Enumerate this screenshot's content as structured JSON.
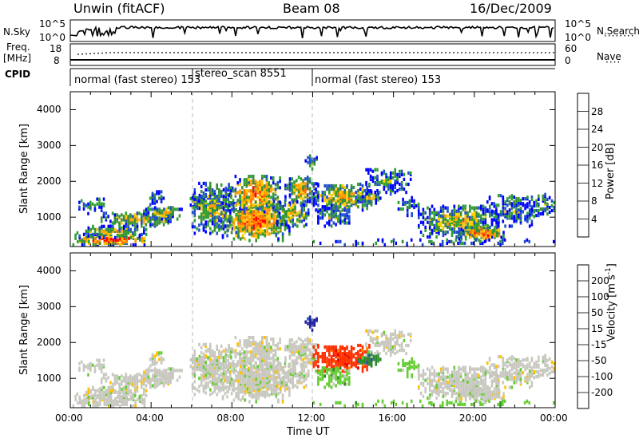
{
  "header": {
    "station": "Unwin (fitACF)",
    "beam": "Beam 08",
    "date": "16/Dec/2009"
  },
  "panels": {
    "nsky": {
      "label": "N.Sky",
      "ticks": [
        "10^5",
        "10^0"
      ],
      "right_label": "N.Search",
      "right_ticks": [
        "10^5",
        "10^0"
      ]
    },
    "freq": {
      "label_line1": "Freq.",
      "label_line2": "[MHz]",
      "ticks": [
        "18",
        "8"
      ],
      "right_label": "Nave",
      "right_ticks": [
        "60",
        "0"
      ]
    },
    "cpid": {
      "label": "CPID",
      "segments": [
        {
          "text": "normal (fast stereo) 153"
        },
        {
          "text": "stereo_scan 8551"
        },
        {
          "text": "normal (fast stereo) 153"
        }
      ]
    }
  },
  "chart_data": [
    {
      "type": "heatmap",
      "title": "",
      "xlabel": "Time UT",
      "ylabel": "Slant Range [km]",
      "xticks": [
        "00:00",
        "04:00",
        "08:00",
        "12:00",
        "16:00",
        "20:00",
        "00:00"
      ],
      "xlim_hours": [
        0,
        24
      ],
      "ylim_km": [
        180,
        4500
      ],
      "yticks": [
        1000,
        2000,
        3000,
        4000
      ],
      "colorbar": {
        "label": "Power [dB]",
        "ticks": [
          "28",
          "24",
          "20",
          "16",
          "12",
          "8",
          "4"
        ],
        "colors": [
          "#ff0000",
          "#ff6a00",
          "#ff9a00",
          "#ffcc00",
          "#3a8a3a",
          "#2ea02e",
          "#2050c8",
          "#0000ff"
        ]
      }
    },
    {
      "type": "heatmap",
      "title": "",
      "xlabel": "Time UT",
      "ylabel": "Slant Range [km]",
      "xticks": [
        "00:00",
        "04:00",
        "08:00",
        "12:00",
        "16:00",
        "20:00",
        "00:00"
      ],
      "xlim_hours": [
        0,
        24
      ],
      "ylim_km": [
        180,
        4500
      ],
      "yticks": [
        1000,
        2000,
        3000,
        4000
      ],
      "colorbar": {
        "label": "Velocity [m s^-1]",
        "ticks": [
          "200",
          "100",
          "50",
          "15",
          "-15",
          "-50",
          "-100",
          "-200"
        ],
        "colors": [
          "#2020a0",
          "#1a50d0",
          "#2d8b2d",
          "#66cc33",
          "#c8c8c0",
          "#ffc000",
          "#ff8000",
          "#ff3000",
          "#e00000"
        ]
      }
    }
  ],
  "footer": {
    "xlabel": "Time UT"
  }
}
